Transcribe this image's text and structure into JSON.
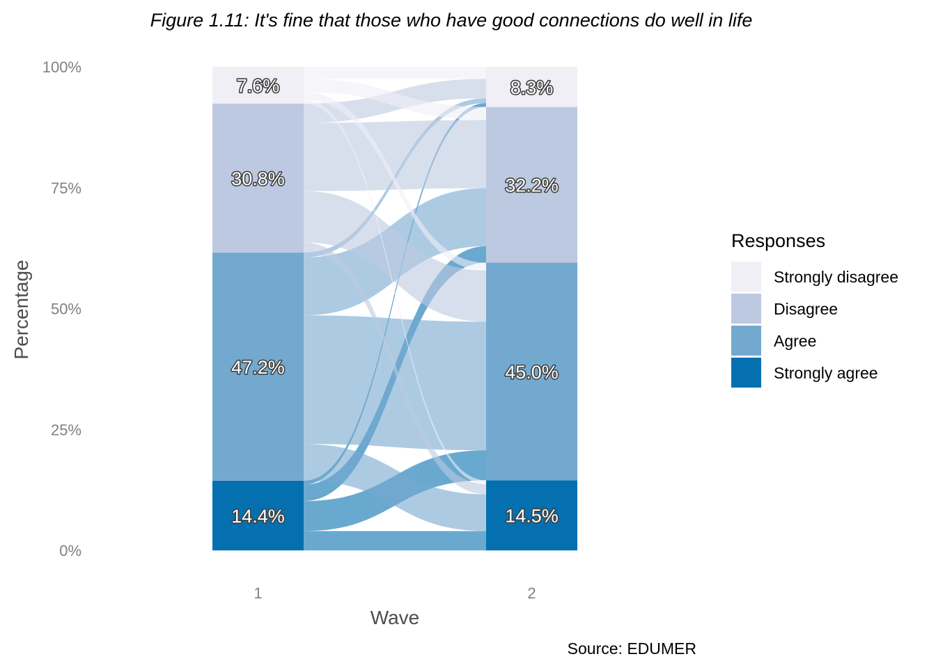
{
  "chart_data": {
    "type": "alluvial",
    "title": "Figure 1.11: It's fine that those who have good connections do well in life",
    "xlabel": "Wave",
    "ylabel": "Percentage",
    "y_ticks": [
      "0%",
      "25%",
      "50%",
      "75%",
      "100%"
    ],
    "ylim": [
      0,
      100
    ],
    "x_categories": [
      "1",
      "2"
    ],
    "legend": {
      "title": "Responses",
      "position": "right",
      "entries": [
        {
          "label": "Strongly disagree",
          "color": "#f0eff6"
        },
        {
          "label": "Disagree",
          "color": "#bdc9e1"
        },
        {
          "label": "Agree",
          "color": "#74a9cf"
        },
        {
          "label": "Strongly agree",
          "color": "#0570b0"
        }
      ]
    },
    "waves": [
      {
        "wave": "1",
        "segments": [
          {
            "category": "Strongly agree",
            "value": 14.4,
            "label": "14.4%"
          },
          {
            "category": "Agree",
            "value": 47.2,
            "label": "47.2%"
          },
          {
            "category": "Disagree",
            "value": 30.8,
            "label": "30.8%"
          },
          {
            "category": "Strongly disagree",
            "value": 7.6,
            "label": "7.6%"
          }
        ]
      },
      {
        "wave": "2",
        "segments": [
          {
            "category": "Strongly agree",
            "value": 14.5,
            "label": "14.5%"
          },
          {
            "category": "Agree",
            "value": 45.0,
            "label": "45.0%"
          },
          {
            "category": "Disagree",
            "value": 32.2,
            "label": "32.2%"
          },
          {
            "category": "Strongly disagree",
            "value": 8.3,
            "label": "8.3%"
          }
        ]
      }
    ],
    "flows": [
      {
        "from": "Strongly agree",
        "to": "Strongly agree",
        "value": 4.0
      },
      {
        "from": "Strongly agree",
        "to": "Agree",
        "value": 6.2
      },
      {
        "from": "Strongly agree",
        "to": "Disagree",
        "value": 3.4
      },
      {
        "from": "Strongly agree",
        "to": "Strongly disagree",
        "value": 0.8
      },
      {
        "from": "Agree",
        "to": "Strongly agree",
        "value": 7.6
      },
      {
        "from": "Agree",
        "to": "Agree",
        "value": 26.6
      },
      {
        "from": "Agree",
        "to": "Disagree",
        "value": 12.0
      },
      {
        "from": "Agree",
        "to": "Strongly disagree",
        "value": 1.0
      },
      {
        "from": "Disagree",
        "to": "Strongly agree",
        "value": 2.1
      },
      {
        "from": "Disagree",
        "to": "Agree",
        "value": 10.6
      },
      {
        "from": "Disagree",
        "to": "Disagree",
        "value": 14.1
      },
      {
        "from": "Disagree",
        "to": "Strongly disagree",
        "value": 4.0
      },
      {
        "from": "Strongly disagree",
        "to": "Strongly agree",
        "value": 0.8
      },
      {
        "from": "Strongly disagree",
        "to": "Agree",
        "value": 1.6
      },
      {
        "from": "Strongly disagree",
        "to": "Disagree",
        "value": 2.7
      },
      {
        "from": "Strongly disagree",
        "to": "Strongly disagree",
        "value": 2.5
      }
    ],
    "caption": "Source: EDUMER"
  }
}
